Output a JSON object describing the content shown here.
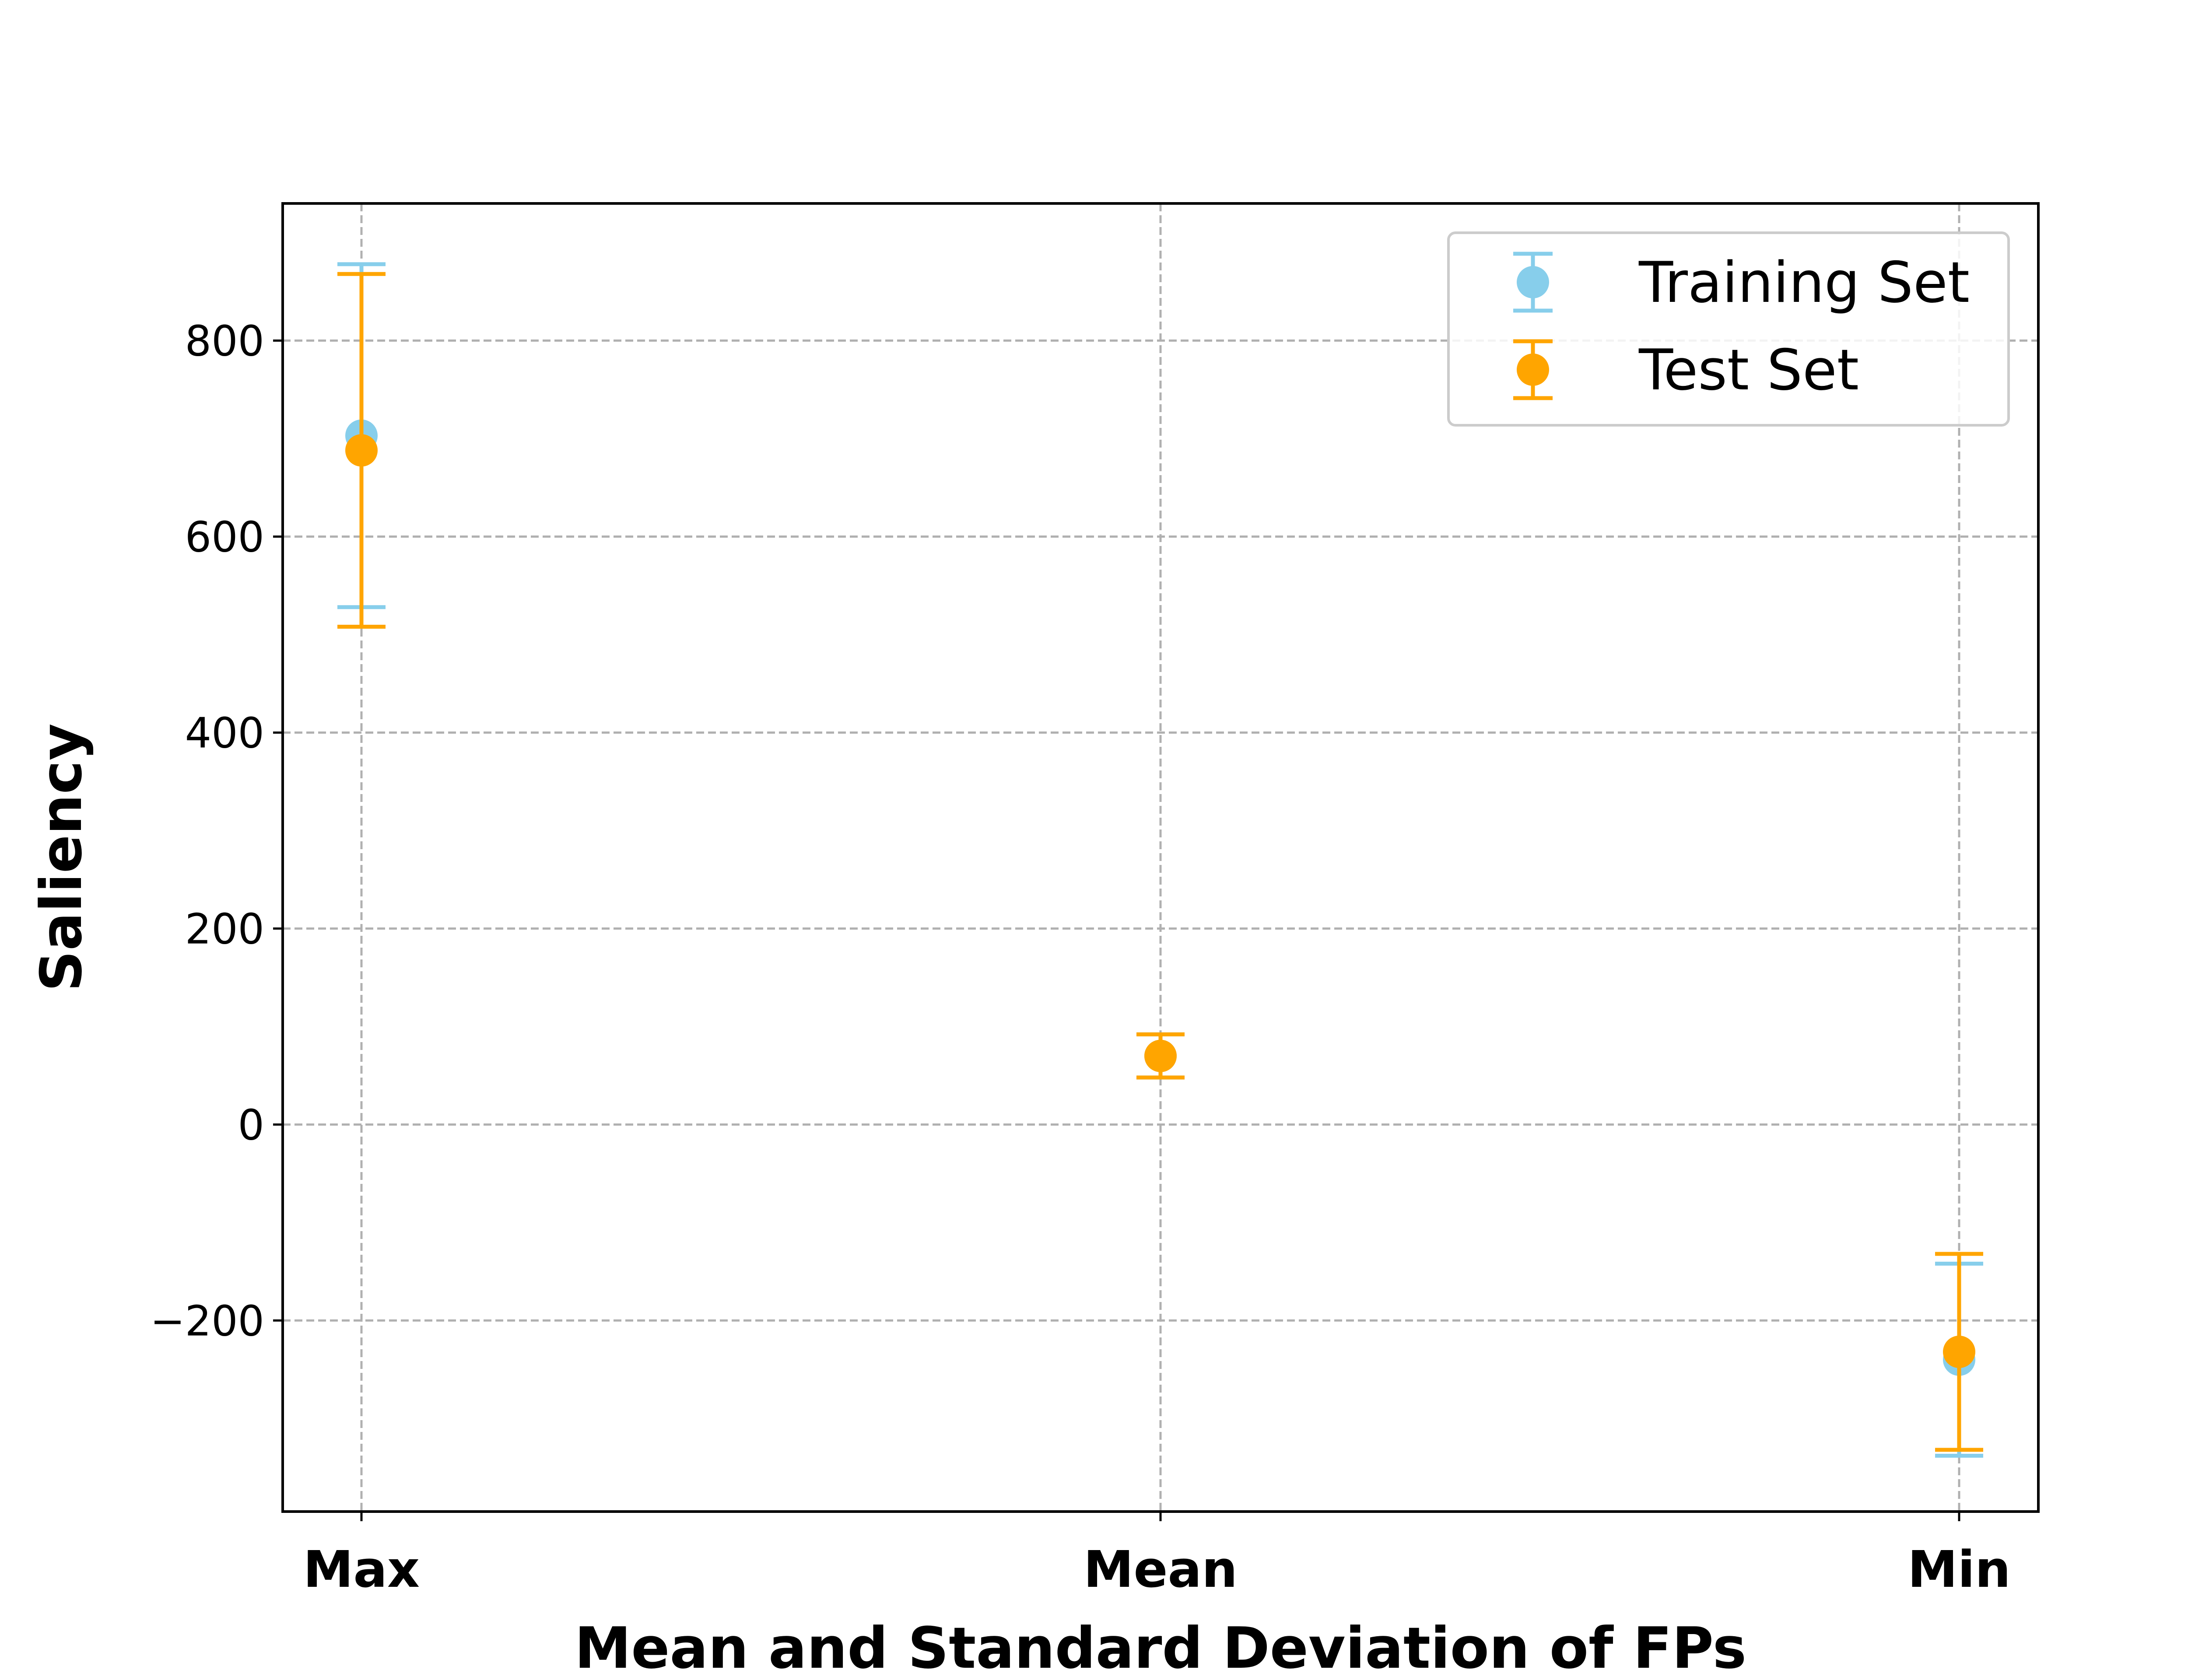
{
  "chart_data": {
    "type": "scatter",
    "categories": [
      "Max",
      "Mean",
      "Min"
    ],
    "xlabel": "Mean and Standard Deviation of FPs",
    "ylabel": "Saliency",
    "ylim": [
      -395,
      940
    ],
    "yticks": [
      -200,
      0,
      200,
      400,
      600,
      800
    ],
    "ytick_labels": [
      "−200",
      "0",
      "200",
      "400",
      "600",
      "800"
    ],
    "grid": true,
    "legend_position": "top-right",
    "series": [
      {
        "name": "Training Set",
        "color": "#87CEEB",
        "means": [
          703,
          70,
          -240
        ],
        "stds": [
          175,
          22,
          98
        ]
      },
      {
        "name": "Test Set",
        "color": "#FFA500",
        "means": [
          688,
          70,
          -232
        ],
        "stds": [
          180,
          22,
          100
        ]
      }
    ]
  }
}
